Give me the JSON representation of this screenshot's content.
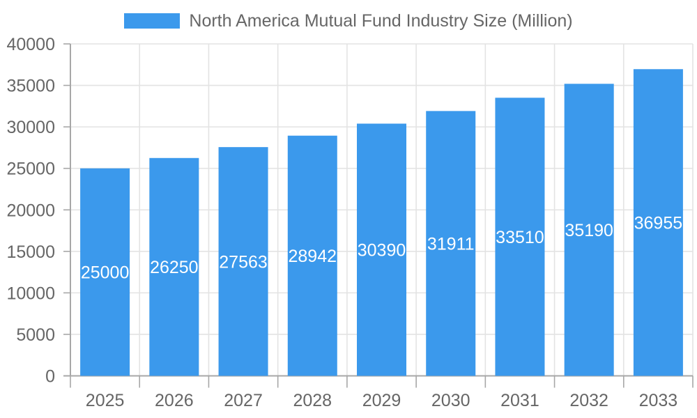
{
  "chart_data": {
    "type": "bar",
    "title": "North America Mutual Fund Industry Size (Million)",
    "legend_position": "top",
    "categories": [
      "2025",
      "2026",
      "2027",
      "2028",
      "2029",
      "2030",
      "2031",
      "2032",
      "2033"
    ],
    "values": [
      25000,
      26250,
      27563,
      28942,
      30390,
      31911,
      33510,
      35190,
      36955
    ],
    "value_labels": [
      "25000",
      "26250",
      "27563",
      "28942",
      "30390",
      "31911",
      "33510",
      "35190",
      "36955"
    ],
    "xlabel": "",
    "ylabel": "",
    "ylim": [
      0,
      40000
    ],
    "yticks": [
      0,
      5000,
      10000,
      15000,
      20000,
      25000,
      30000,
      35000,
      40000
    ],
    "ytick_labels": [
      "0",
      "5000",
      "10000",
      "15000",
      "20000",
      "25000",
      "30000",
      "35000",
      "40000"
    ],
    "grid": true,
    "colors": {
      "bar": "#3B99EC",
      "axis": "#a7a7a7",
      "grid": "#e3e3e3",
      "tick_text": "#666666",
      "legend_text": "#666666",
      "value_label": "#ffffff",
      "background": "#ffffff"
    }
  }
}
